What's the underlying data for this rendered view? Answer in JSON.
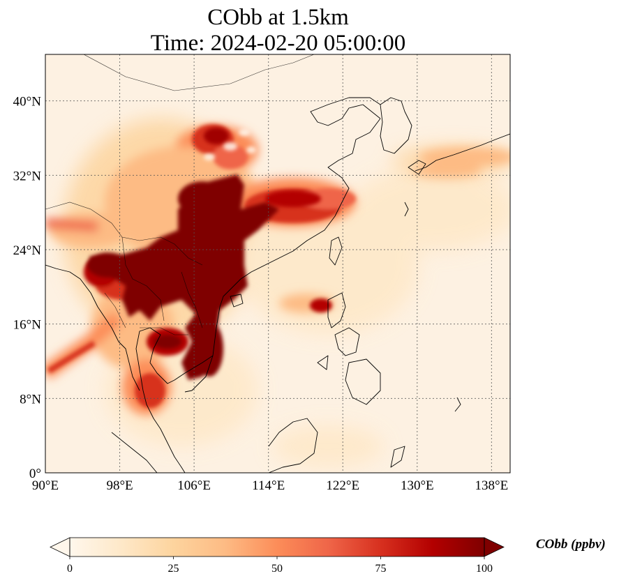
{
  "title": {
    "line1": "CObb at 1.5km",
    "line2": "Time: 2024-02-20 05:00:00"
  },
  "map": {
    "projection": "PlateCarree",
    "extent_lon": [
      90,
      140
    ],
    "extent_lat": [
      0,
      45
    ],
    "lon_ticks": [
      {
        "value": 90,
        "label": "90°E"
      },
      {
        "value": 98,
        "label": "98°E"
      },
      {
        "value": 106,
        "label": "106°E"
      },
      {
        "value": 114,
        "label": "114°E"
      },
      {
        "value": 122,
        "label": "122°E"
      },
      {
        "value": 130,
        "label": "130°E"
      },
      {
        "value": 138,
        "label": "138°E"
      }
    ],
    "lat_ticks": [
      {
        "value": 0,
        "label": "0°"
      },
      {
        "value": 8,
        "label": "8°N"
      },
      {
        "value": 16,
        "label": "16°N"
      },
      {
        "value": 24,
        "label": "24°N"
      },
      {
        "value": 32,
        "label": "32°N"
      },
      {
        "value": 40,
        "label": "40°N"
      }
    ],
    "gridlines": true,
    "gridline_style": "dotted",
    "coastlines": true,
    "borders": true
  },
  "colorbar": {
    "label": "CObb (ppbv)",
    "colormap": "OrRd",
    "min": 0,
    "max": 100,
    "extend": "both",
    "orientation": "horizontal",
    "ticks": [
      {
        "value": 0,
        "label": "0"
      },
      {
        "value": 25,
        "label": "25"
      },
      {
        "value": 50,
        "label": "50"
      },
      {
        "value": 75,
        "label": "75"
      },
      {
        "value": 100,
        "label": "100"
      }
    ],
    "colors": [
      "#fff7ec",
      "#fee8c8",
      "#fdd49e",
      "#fdbb84",
      "#fc8d59",
      "#ef6548",
      "#d7301f",
      "#b30000",
      "#7f0000"
    ]
  },
  "field_regions": [
    {
      "name": "indochina-south-china-core",
      "lon": 108,
      "lat": 23,
      "value": 100
    },
    {
      "name": "central-china-plume",
      "lon": 110,
      "lat": 28,
      "value": 100
    },
    {
      "name": "north-china-plume",
      "lon": 108.5,
      "lat": 35.5,
      "value": 80
    },
    {
      "name": "yangtze-east-plume",
      "lon": 116,
      "lat": 29.5,
      "value": 85
    },
    {
      "name": "laos-vietnam-north",
      "lon": 106,
      "lat": 18.5,
      "value": 100
    },
    {
      "name": "cambodia-vietnam-south",
      "lon": 106.5,
      "lat": 13.5,
      "value": 95
    },
    {
      "name": "thailand-east",
      "lon": 102.5,
      "lat": 14.2,
      "value": 85
    },
    {
      "name": "myanmar-north",
      "lon": 96,
      "lat": 22.3,
      "value": 100
    },
    {
      "name": "myanmar-west",
      "lon": 95,
      "lat": 19.5,
      "value": 80
    },
    {
      "name": "malay-peninsula",
      "lon": 101,
      "lat": 9.5,
      "value": 75
    },
    {
      "name": "andaman-sea-band",
      "lon": 93,
      "lat": 12.5,
      "value": 65
    },
    {
      "name": "himalaya-band",
      "lon": 92,
      "lat": 26.5,
      "value": 70
    },
    {
      "name": "luzon",
      "lon": 120,
      "lat": 18.2,
      "value": 90
    },
    {
      "name": "luzon-west-drift",
      "lon": 116.5,
      "lat": 18,
      "value": 40
    },
    {
      "name": "south-china-sea-drift",
      "lon": 117,
      "lat": 21,
      "value": 25
    },
    {
      "name": "pacific-band",
      "lon": 130,
      "lat": 27,
      "value": 25
    },
    {
      "name": "japan-band",
      "lon": 137,
      "lat": 34,
      "value": 30
    },
    {
      "name": "borneo-coast",
      "lon": 112,
      "lat": 2,
      "value": 15
    }
  ]
}
